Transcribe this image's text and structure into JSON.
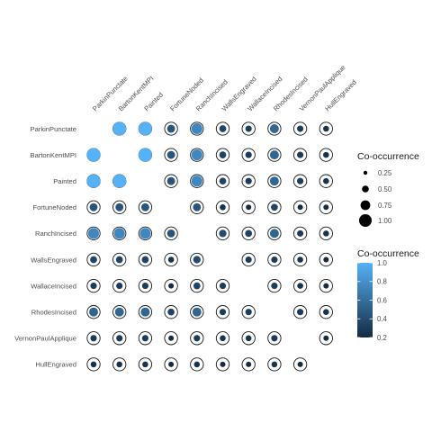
{
  "chart_data": {
    "type": "scatter",
    "title": "",
    "xlabel": "",
    "ylabel": "",
    "grid": false,
    "legend_position": "right",
    "x_categories": [
      "ParkinPunctate",
      "BartonKentMPI",
      "Painted",
      "FortuneNoded",
      "RanchIncised",
      "WallsEngraved",
      "WallaceIncised",
      "RhodesIncised",
      "VernonPaulApplique",
      "HullEngraved"
    ],
    "y_categories": [
      "ParkinPunctate",
      "BartonKentMPI",
      "Painted",
      "FortuneNoded",
      "RanchIncised",
      "WallsEngraved",
      "WallaceIncised",
      "RhodesIncised",
      "VernonPaulApplique",
      "HullEngraved"
    ],
    "values": [
      [
        null,
        1.0,
        1.0,
        0.45,
        0.75,
        0.35,
        0.3,
        0.55,
        0.3,
        0.25
      ],
      [
        1.0,
        null,
        1.0,
        0.45,
        0.75,
        0.35,
        0.3,
        0.55,
        0.3,
        0.25
      ],
      [
        1.0,
        1.0,
        null,
        0.45,
        0.75,
        0.35,
        0.3,
        0.55,
        0.3,
        0.25
      ],
      [
        0.45,
        0.45,
        0.45,
        null,
        0.45,
        0.25,
        0.2,
        0.35,
        0.2,
        0.2
      ],
      [
        0.75,
        0.75,
        0.75,
        0.45,
        null,
        0.4,
        0.35,
        0.55,
        0.3,
        0.25
      ],
      [
        0.35,
        0.35,
        0.35,
        0.25,
        0.4,
        null,
        0.3,
        0.3,
        0.25,
        0.2
      ],
      [
        0.3,
        0.3,
        0.3,
        0.2,
        0.35,
        0.3,
        null,
        0.3,
        0.25,
        0.2
      ],
      [
        0.55,
        0.55,
        0.55,
        0.35,
        0.55,
        0.3,
        0.3,
        null,
        0.3,
        0.25
      ],
      [
        0.3,
        0.3,
        0.3,
        0.2,
        0.3,
        0.25,
        0.25,
        0.3,
        null,
        0.2
      ],
      [
        0.25,
        0.25,
        0.25,
        0.2,
        0.25,
        0.2,
        0.2,
        0.25,
        0.2,
        null
      ]
    ],
    "size_legend": {
      "title": "Co-occurrence",
      "breaks": [
        0.25,
        0.5,
        0.75,
        1.0
      ],
      "labels": [
        "0.25",
        "0.50",
        "0.75",
        "1.00"
      ]
    },
    "color_legend": {
      "title": "Co-occurrence",
      "breaks": [
        1.0,
        0.8,
        0.6,
        0.4,
        0.2
      ],
      "labels": [
        "1.0",
        "0.8",
        "0.6",
        "0.4",
        "0.2"
      ],
      "range": [
        0.2,
        1.0
      ],
      "low_color": "#132B43",
      "high_color": "#56B1F7"
    },
    "outline_color": "#1a1a1a"
  }
}
